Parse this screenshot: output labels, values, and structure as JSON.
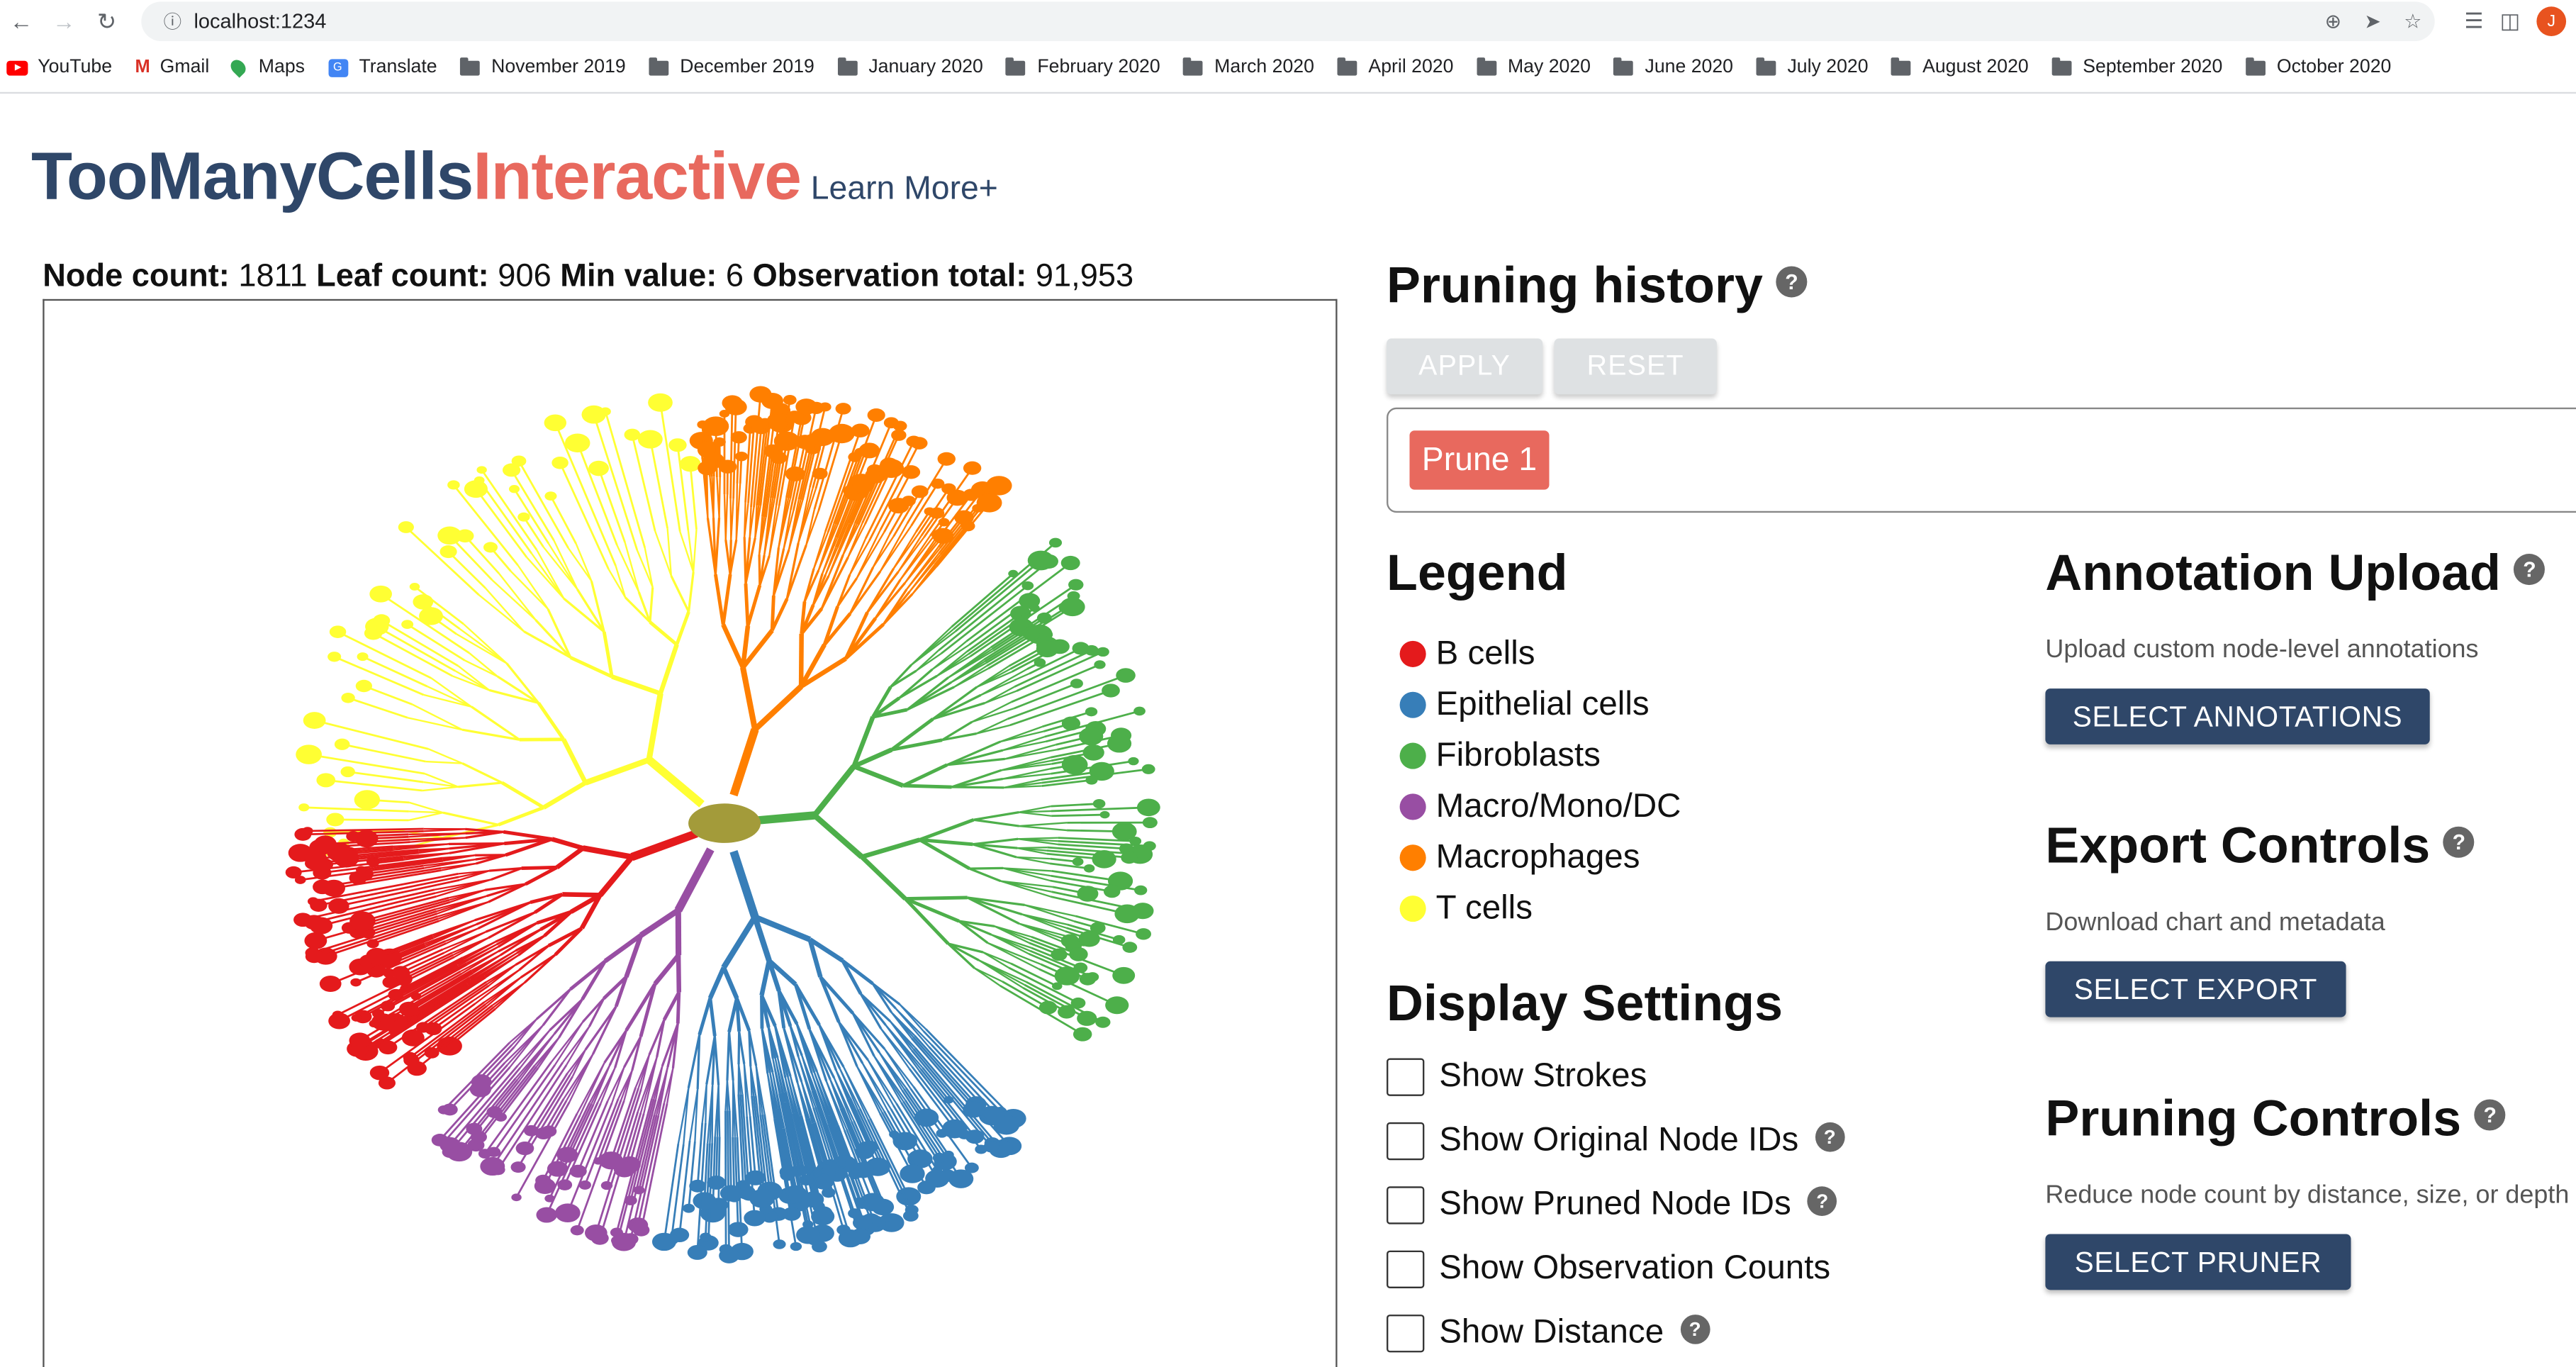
{
  "browser": {
    "url": "localhost:1234",
    "avatar_letter": "J",
    "bookmarks": [
      {
        "label": "YouTube",
        "icon": "youtube-icon"
      },
      {
        "label": "Gmail",
        "icon": "gmail-icon"
      },
      {
        "label": "Maps",
        "icon": "maps-icon"
      },
      {
        "label": "Translate",
        "icon": "translate-icon"
      },
      {
        "label": "November 2019",
        "icon": "folder-icon"
      },
      {
        "label": "December 2019",
        "icon": "folder-icon"
      },
      {
        "label": "January 2020",
        "icon": "folder-icon"
      },
      {
        "label": "February 2020",
        "icon": "folder-icon"
      },
      {
        "label": "March 2020",
        "icon": "folder-icon"
      },
      {
        "label": "April 2020",
        "icon": "folder-icon"
      },
      {
        "label": "May 2020",
        "icon": "folder-icon"
      },
      {
        "label": "June 2020",
        "icon": "folder-icon"
      },
      {
        "label": "July 2020",
        "icon": "folder-icon"
      },
      {
        "label": "August 2020",
        "icon": "folder-icon"
      },
      {
        "label": "September 2020",
        "icon": "folder-icon"
      },
      {
        "label": "October 2020",
        "icon": "folder-icon"
      }
    ]
  },
  "app": {
    "title_part1": "TooMany",
    "title_part2": "Cells",
    "title_part3": "Interactive",
    "learn_more": "Learn More+",
    "stats": {
      "node_label": "Node count:",
      "node_value": "1811",
      "leaf_label": "Leaf count:",
      "leaf_value": "906",
      "min_label": "Min value:",
      "min_value": "6",
      "obs_label": "Observation total:",
      "obs_value": "91,953"
    }
  },
  "pruning_history": {
    "title": "Pruning history",
    "apply_label": "APPLY",
    "reset_label": "RESET",
    "chips": [
      "Prune 1"
    ]
  },
  "legend": {
    "title": "Legend",
    "items": [
      {
        "label": "B cells",
        "color": "#e41a1c"
      },
      {
        "label": "Epithelial cells",
        "color": "#377eb8"
      },
      {
        "label": "Fibroblasts",
        "color": "#4daf4a"
      },
      {
        "label": "Macro/Mono/DC",
        "color": "#984ea3"
      },
      {
        "label": "Macrophages",
        "color": "#ff7f00"
      },
      {
        "label": "T cells",
        "color": "#ffff33"
      }
    ]
  },
  "display_settings": {
    "title": "Display Settings",
    "options": [
      {
        "label": "Show Strokes",
        "help": false,
        "checked": false
      },
      {
        "label": "Show Original Node IDs",
        "help": true,
        "checked": false
      },
      {
        "label": "Show Pruned Node IDs",
        "help": true,
        "checked": false
      },
      {
        "label": "Show Observation Counts",
        "help": false,
        "checked": false
      },
      {
        "label": "Show Distance",
        "help": true,
        "checked": false
      }
    ]
  },
  "annotation_upload": {
    "title": "Annotation Upload",
    "description": "Upload custom node-level annotations",
    "button": "SELECT ANNOTATIONS"
  },
  "export_controls": {
    "title": "Export Controls",
    "description": "Download chart and metadata",
    "button": "SELECT EXPORT"
  },
  "pruning_controls": {
    "title": "Pruning Controls",
    "description": "Reduce node count by distance, size, or depth",
    "button": "SELECT PRUNER"
  },
  "colors": {
    "brand_dark": "#2f4769",
    "brand_accent": "#e8695e",
    "center_node": "#a39b3a"
  }
}
